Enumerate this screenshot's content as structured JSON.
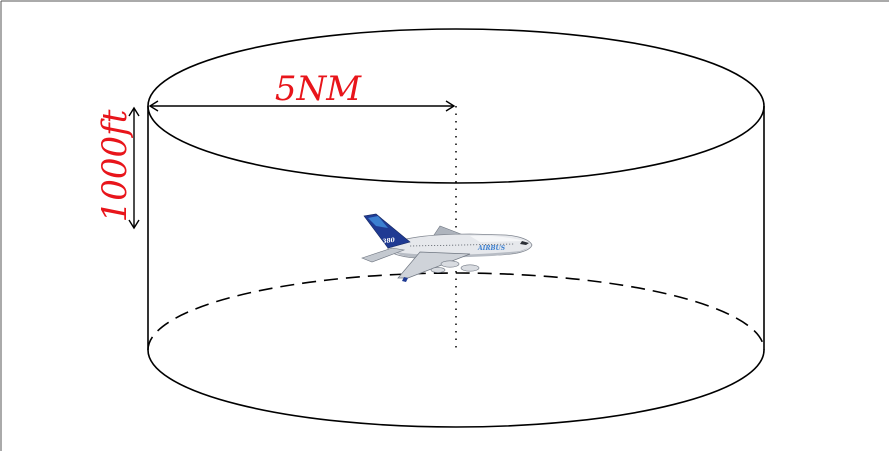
{
  "labels": {
    "radius": "5NM",
    "height": "1000ft"
  },
  "colors": {
    "label": "#e8151b",
    "stroke": "#000000",
    "aircraft_body": "#e6e8ec",
    "aircraft_tail": "#1f3a93"
  },
  "aircraft": {
    "tail_text": "A380",
    "livery_text": "AIRBUS"
  }
}
